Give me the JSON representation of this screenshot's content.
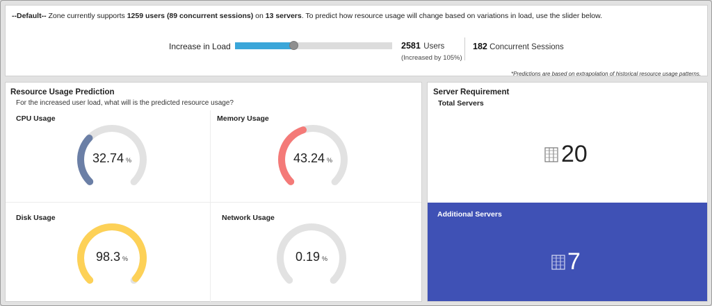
{
  "summary": {
    "zone": "--Default--",
    "text_a": " Zone currently supports ",
    "users": "1259 users",
    "sessions": "(89 concurrent sessions)",
    "text_b": " on ",
    "servers": "13 servers",
    "text_c": ". To predict how resource usage will change based on variations in load, use the slider below."
  },
  "load": {
    "label": "Increase in Load",
    "slider_value_fraction": 0.37,
    "users_value": "2581",
    "users_label": "Users",
    "increase_note": "(Increased by 105%)",
    "sessions_value": "182",
    "sessions_label": "Concurrent Sessions",
    "footnote": "*Predictions are based on extrapolation of historical resource usage patterns."
  },
  "usage": {
    "title": "Resource Usage Prediction",
    "subtitle": "For the increased user load, what will is the predicted resource usage?",
    "gauges": [
      {
        "key": "cpu",
        "label": "CPU Usage",
        "value": "32.74",
        "unit": "%",
        "color": "#6b7fa6"
      },
      {
        "key": "memory",
        "label": "Memory Usage",
        "value": "43.24",
        "unit": "%",
        "color": "#f47a78"
      },
      {
        "key": "disk",
        "label": "Disk Usage",
        "value": "98.3",
        "unit": "%",
        "color": "#fdd157"
      },
      {
        "key": "network",
        "label": "Network Usage",
        "value": "0.19",
        "unit": "%",
        "color": "#6b7fa6"
      }
    ]
  },
  "servers": {
    "title": "Server Requirement",
    "total_label": "Total Servers",
    "total_value": "20",
    "additional_label": "Additional Servers",
    "additional_value": "7",
    "icon": "server-rack-icon",
    "accent": "#3f51b5"
  }
}
